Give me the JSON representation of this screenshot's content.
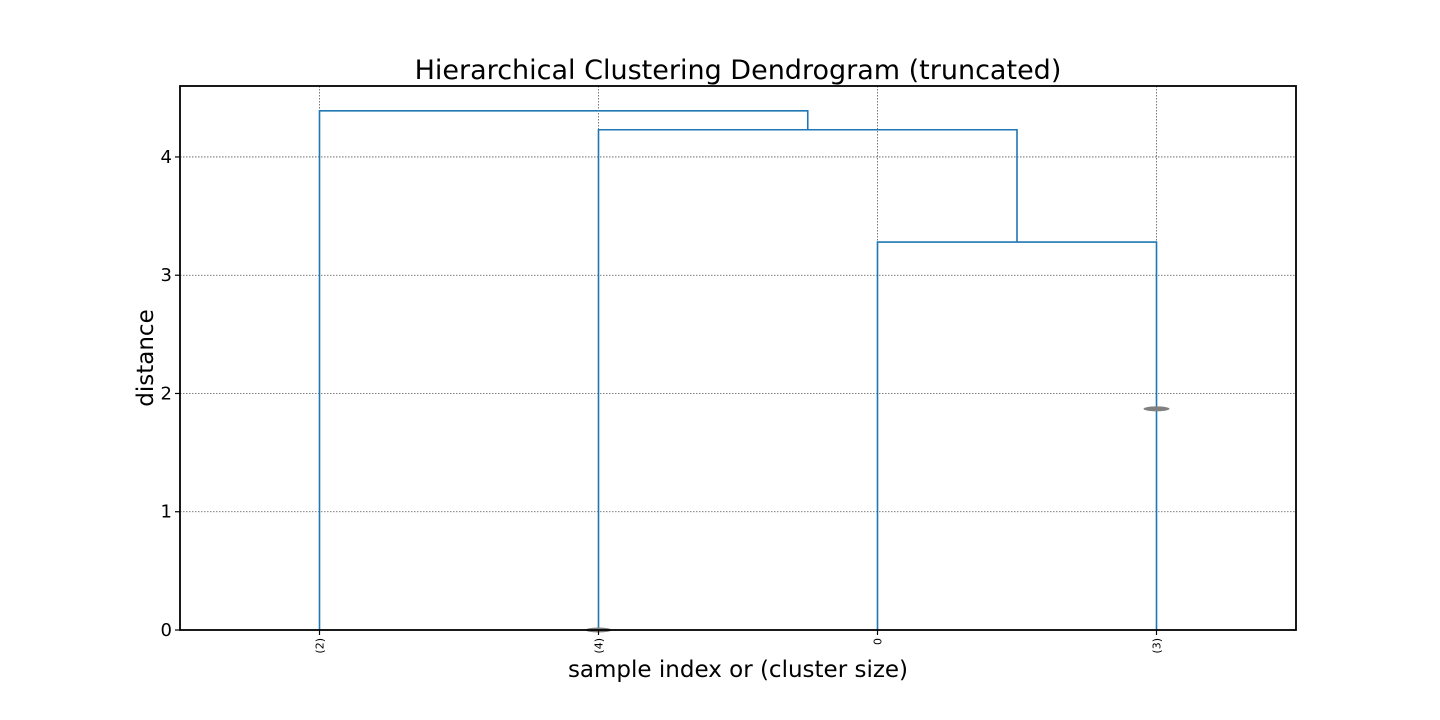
{
  "chart_data": {
    "type": "dendrogram",
    "title": "Hierarchical Clustering Dendrogram (truncated)",
    "xlabel": "sample index or (cluster size)",
    "ylabel": "distance",
    "ylim": [
      0,
      4.6
    ],
    "yticks": [
      0,
      1,
      2,
      3,
      4
    ],
    "grid": true,
    "leaves": [
      "(2)",
      "(4)",
      "0",
      "(3)"
    ],
    "links": [
      {
        "left": 2,
        "right": 3,
        "height": 3.28
      },
      {
        "left": 1,
        "right": "link0",
        "height": 4.23
      },
      {
        "left": 0,
        "right": "link1",
        "height": 4.39
      }
    ],
    "markers": [
      {
        "leaf": 3,
        "y": 1.87
      },
      {
        "leaf": 1,
        "y": 0.0
      }
    ],
    "link_color": "#1f77b4",
    "marker_color": "#808080"
  }
}
